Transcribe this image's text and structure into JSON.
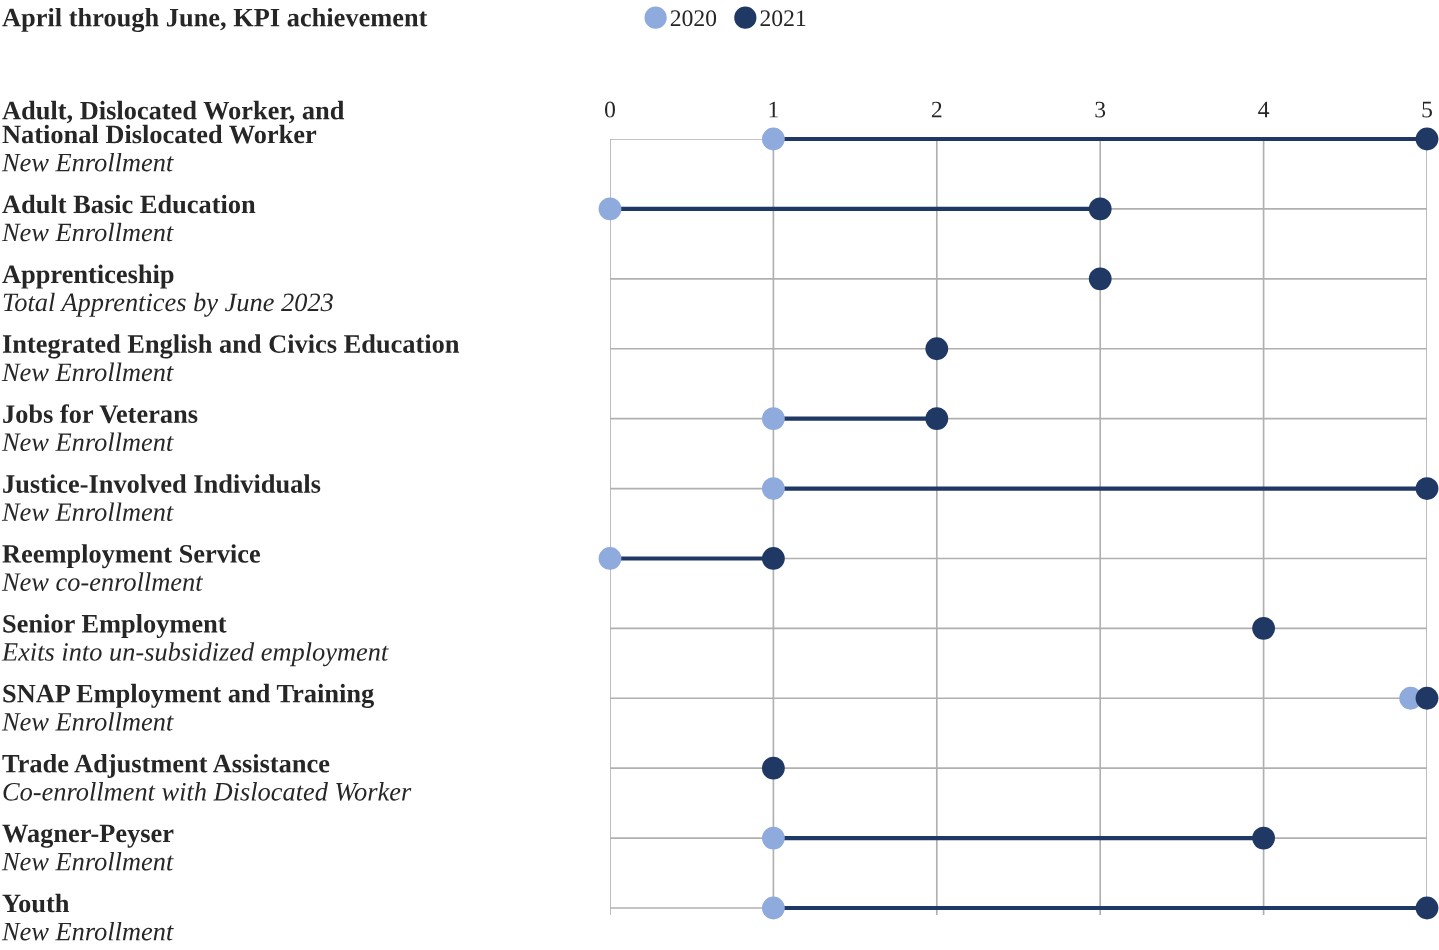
{
  "chart_data": {
    "type": "scatter",
    "title": "April through June, KPI achievement",
    "categories": [
      "Adult, Dislocated Worker, and\nNational Dislocated Worker\nNew Enrollment",
      "Adult Basic Education\nNew Enrollment",
      "Apprenticeship\nTotal Apprentices by June 2023",
      "Integrated English and Civics Education\nNew Enrollment",
      "Jobs for Veterans\nNew Enrollment",
      "Justice-Involved Individuals\nNew Enrollment",
      "Reemployment Service\nNew co-enrollment",
      "Senior Employment\nExits into un-subsidized employment",
      "SNAP Employment and Training\nNew Enrollment",
      "Trade Adjustment Assistance\nCo-enrollment with Dislocated Worker",
      "Wagner-Peyser\nNew Enrollment",
      "Youth\nNew Enrollment"
    ],
    "orientation": "horizontal",
    "series": [
      {
        "name": "2020",
        "color": "#8faadc",
        "values": [
          1,
          0,
          null,
          null,
          1,
          1,
          0,
          null,
          4.9,
          null,
          1,
          1
        ]
      },
      {
        "name": "2021",
        "color": "#1f3864",
        "values": [
          5,
          3,
          3,
          2,
          2,
          5,
          1,
          4,
          5,
          1,
          4,
          5
        ]
      }
    ],
    "xlim": [
      0,
      5
    ],
    "xticks": [
      0,
      1,
      2,
      3,
      4,
      5
    ],
    "grid": true,
    "legend": "top",
    "marker": "circle"
  }
}
